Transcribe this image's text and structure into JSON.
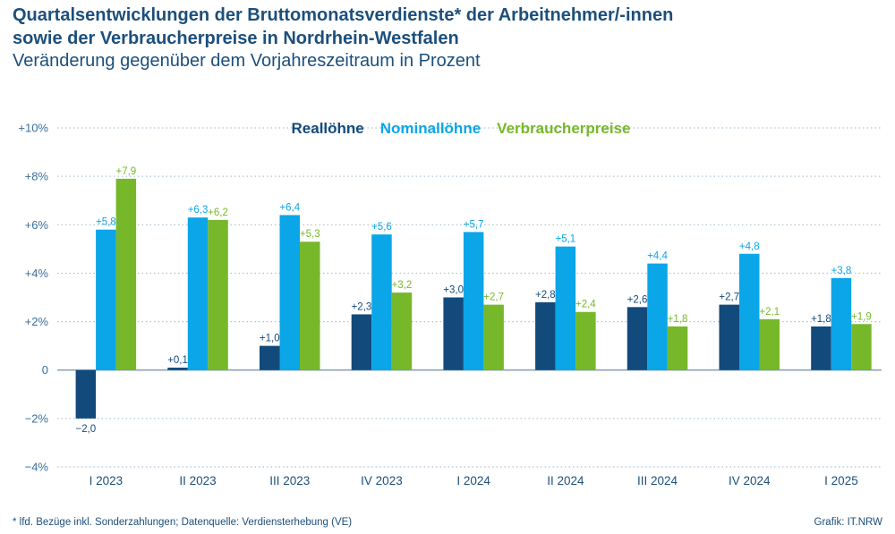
{
  "header": {
    "title_line1": "Quartalsentwicklungen der Bruttomonatsverdienste* der Arbeitnehmer/-innen",
    "title_line2": "sowie der Verbraucherpreise in Nordrhein-Westfalen",
    "subtitle": "Veränderung gegenüber dem Vorjahreszeitraum in Prozent"
  },
  "footer": {
    "footnote": "* lfd. Bezüge inkl. Sonderzahlungen; Datenquelle: Verdiensterhebung (VE)",
    "credit": "Grafik: IT.NRW"
  },
  "chart_data": {
    "type": "bar",
    "categories": [
      "I 2023",
      "II 2023",
      "III  2023",
      "IV 2023",
      "I 2024",
      "II 2024",
      "III 2024",
      "IV 2024",
      "I 2025"
    ],
    "ylim": [
      -4,
      10
    ],
    "yticks": [
      -4,
      -2,
      0,
      2,
      4,
      6,
      8,
      10
    ],
    "ytick_labels": [
      "−4%",
      "−2%",
      "0",
      "+2%",
      "+4%",
      "+6%",
      "+8%",
      "+10%"
    ],
    "grid": "horizontal-dotted",
    "legend_position": "top-center",
    "series": [
      {
        "name": "Reallöhne",
        "color": "#124a7c",
        "values": [
          -2.0,
          0.1,
          1.0,
          2.3,
          3.0,
          2.8,
          2.6,
          2.7,
          1.8
        ],
        "labels": [
          "−2,0",
          "+0,1",
          "+1,0",
          "+2,3",
          "+3,0",
          "+2,8",
          "+2,6",
          "+2,7",
          "+1,8"
        ]
      },
      {
        "name": "Nominallöhne",
        "color": "#0aa6e8",
        "values": [
          5.8,
          6.3,
          6.4,
          5.6,
          5.7,
          5.1,
          4.4,
          4.8,
          3.8
        ],
        "labels": [
          "+5,8",
          "+6,3",
          "+6,4",
          "+5,6",
          "+5,7",
          "+5,1",
          "+4,4",
          "+4,8",
          "+3,8"
        ]
      },
      {
        "name": "Verbraucherpreise",
        "color": "#76b82a",
        "values": [
          7.9,
          6.2,
          5.3,
          3.2,
          2.7,
          2.4,
          1.8,
          2.1,
          1.9
        ],
        "labels": [
          "+7,9",
          "+6,2",
          "+5,3",
          "+3,2",
          "+2,7",
          "+2,4",
          "+1,8",
          "+2,1",
          "+1,9"
        ]
      }
    ]
  }
}
